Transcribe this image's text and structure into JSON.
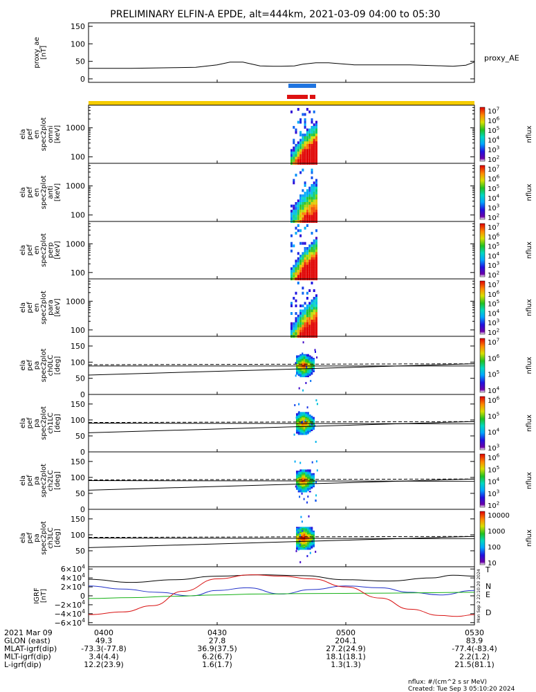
{
  "title": "PRELIMINARY ELFIN-A EPDE, alt=444km, 2021-03-09 04:00 to 05:30",
  "colors": {
    "sw_blue": "#1f74e0",
    "sw_red": "#dd1111",
    "sw_yellow": "#f5cc00",
    "bx": "#1f2fc8",
    "by": "#14b014",
    "bz": "#d81010",
    "btot": "#000000"
  },
  "chart_data": [
    {
      "type": "line",
      "id": "ae",
      "ylabel": "proxy_ae\n[nT]",
      "ylim": [
        -10,
        160
      ],
      "yticks": [
        "0",
        "50",
        "100",
        "150"
      ],
      "series": [
        {
          "name": "proxy_AE",
          "x_minutes": [
            0,
            5,
            10,
            15,
            20,
            25,
            30,
            33,
            36,
            40,
            43,
            45,
            48,
            50,
            53,
            56,
            60,
            62,
            65,
            70,
            75,
            80,
            85,
            88,
            90
          ],
          "values": [
            30,
            30,
            30,
            31,
            32,
            33,
            40,
            48,
            48,
            37,
            36,
            36,
            37,
            42,
            46,
            46,
            42,
            40,
            40,
            40,
            40,
            38,
            36,
            39,
            48
          ]
        }
      ]
    },
    {
      "type": "heatmap",
      "id": "omni",
      "ylabel": "ela\npef\nen\nspec2plot\nomni\n[keV]",
      "yticks": [
        "100",
        "1000"
      ],
      "zticks": [
        "10^7",
        "10^6",
        "10^5",
        "10^4",
        "10^3",
        "10^2"
      ],
      "zlabel": "nflux"
    },
    {
      "type": "heatmap",
      "id": "anti",
      "ylabel": "ela\npef\nen\nspec2plot\nanti\n[keV]",
      "yticks": [
        "100",
        "1000"
      ],
      "zticks": [
        "10^7",
        "10^6",
        "10^5",
        "10^4",
        "10^3",
        "10^2"
      ],
      "zlabel": "nflux"
    },
    {
      "type": "heatmap",
      "id": "perp",
      "ylabel": "ela\npef\nen\nspec2plot\nperp\n[keV]",
      "yticks": [
        "100",
        "1000"
      ],
      "zticks": [
        "10^7",
        "10^6",
        "10^5",
        "10^4",
        "10^3",
        "10^2"
      ],
      "zlabel": "nflux"
    },
    {
      "type": "heatmap",
      "id": "para",
      "ylabel": "ela\npef\nen\nspec2plot\npara\n[keV]",
      "yticks": [
        "100",
        "1000"
      ],
      "zticks": [
        "10^7",
        "10^6",
        "10^5",
        "10^4",
        "10^3",
        "10^2"
      ],
      "zlabel": "nflux"
    },
    {
      "type": "heatmap",
      "id": "ch0",
      "ylabel": "ela\npef\npa\nspec2plot\nch0LC\n[deg]",
      "ylim": [
        0,
        180
      ],
      "yticks": [
        "0",
        "50",
        "100",
        "150"
      ],
      "zticks": [
        "10^7",
        "10^6",
        "10^5",
        "10^4"
      ],
      "zlabel": "nflux"
    },
    {
      "type": "heatmap",
      "id": "ch1",
      "ylabel": "ela\npef\npa\nspec2plot\nch1LC\n[deg]",
      "ylim": [
        0,
        180
      ],
      "yticks": [
        "0",
        "50",
        "100",
        "150"
      ],
      "zticks": [
        "10^6",
        "10^5",
        "10^4",
        "10^3"
      ],
      "zlabel": "nflux"
    },
    {
      "type": "heatmap",
      "id": "ch2",
      "ylabel": "ela\npef\npa\nspec2plot\nch2LC\n[deg]",
      "ylim": [
        0,
        180
      ],
      "yticks": [
        "0",
        "50",
        "100",
        "150"
      ],
      "zticks": [
        "10^6",
        "10^5",
        "10^4",
        "10^3",
        "10^2"
      ],
      "zlabel": "nflux"
    },
    {
      "type": "heatmap",
      "id": "ch3",
      "ylabel": "ela\npef\npa\nspec2plot\nch3LC\n[deg]",
      "ylim": [
        0,
        180
      ],
      "yticks": [
        "50",
        "100",
        "150"
      ],
      "zticks": [
        "10000",
        "1000",
        "100",
        "10"
      ],
      "zlabel": "nflux"
    },
    {
      "type": "line",
      "id": "igrf",
      "ylabel": "IGRF\n[nT]",
      "ylim": [
        -65000,
        65000
      ],
      "yticks": [
        "−6×10^4",
        "−4×10^4",
        "−2×10^4",
        "0",
        "2×10^4",
        "4×10^4",
        "6×10^4"
      ],
      "legend": [
        "T",
        "N",
        "E",
        "D"
      ],
      "series": [
        {
          "name": "T",
          "x_minutes": [
            0,
            10,
            20,
            30,
            40,
            50,
            60,
            70,
            80,
            85,
            90
          ],
          "values": [
            37000,
            30000,
            36000,
            44000,
            47000,
            45000,
            36000,
            33000,
            40000,
            46000,
            44000
          ]
        },
        {
          "name": "N",
          "x_minutes": [
            0,
            8,
            16,
            24,
            30,
            37,
            45,
            52,
            60,
            68,
            75,
            82,
            90
          ],
          "values": [
            22000,
            15000,
            8000,
            0,
            12000,
            18000,
            4000,
            14000,
            22000,
            18000,
            8000,
            2000,
            12000
          ]
        },
        {
          "name": "E",
          "x_minutes": [
            0,
            10,
            20,
            30,
            40,
            50,
            60,
            70,
            80,
            90
          ],
          "values": [
            -6000,
            -4000,
            -1000,
            2000,
            4000,
            5000,
            5500,
            6000,
            7000,
            8000
          ]
        },
        {
          "name": "D",
          "x_minutes": [
            0,
            8,
            15,
            22,
            30,
            38,
            45,
            52,
            60,
            68,
            75,
            82,
            86,
            90
          ],
          "values": [
            -42000,
            -36000,
            -22000,
            10000,
            38000,
            47000,
            44000,
            38000,
            20000,
            -5000,
            -30000,
            -44000,
            -46000,
            -42000
          ]
        }
      ]
    }
  ],
  "xaxis": {
    "ticks": [
      "0400",
      "0430",
      "0500",
      "0530"
    ],
    "rows": [
      {
        "label": "2021 Mar 09",
        "values": [
          "0400",
          "0430",
          "0500",
          "0530"
        ]
      },
      {
        "label": "GLON (east)",
        "values": [
          "49.3",
          "27.8",
          "204.1",
          "83.9"
        ]
      },
      {
        "label": "MLAT-igrf(dip)",
        "values": [
          "-73.3(-77.8)",
          "36.9(37.5)",
          "27.2(24.9)",
          "-77.4(-83.4)"
        ]
      },
      {
        "label": "MLT-igrf(dip)",
        "values": [
          "3.4(4.4)",
          "6.2(6.7)",
          "18.1(18.1)",
          "2.2(1.2)"
        ]
      },
      {
        "label": "L-igrf(dip)",
        "values": [
          "12.2(23.9)",
          "1.6(1.7)",
          "1.3(1.3)",
          "21.5(81.1)"
        ]
      }
    ]
  },
  "footer": {
    "units": "nflux: #/(cm^2 s sr MeV)",
    "created": "Created: Tue Sep  3 05:10:20 2024",
    "side_stamp": "Mon Sep  2 22:10:20 2024"
  }
}
